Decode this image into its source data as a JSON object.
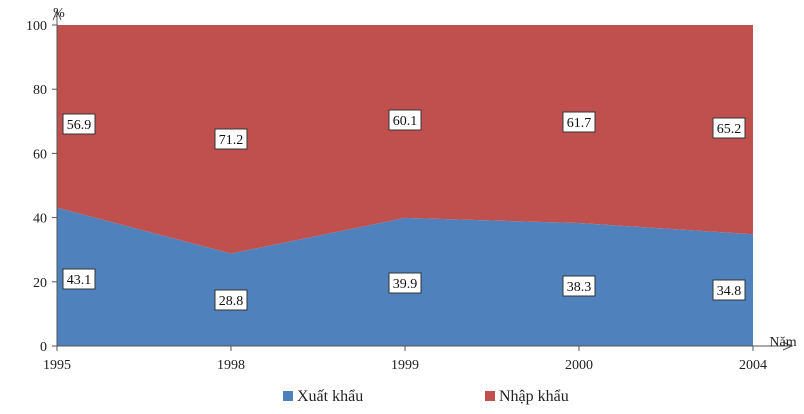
{
  "chart_data": {
    "type": "area",
    "stacked": true,
    "percent": true,
    "x": [
      "1995",
      "1998",
      "1999",
      "2000",
      "2004"
    ],
    "series": [
      {
        "name": "Xuất khẩu",
        "color": "#4f81bd",
        "values": [
          43.1,
          28.8,
          39.9,
          38.3,
          34.8
        ]
      },
      {
        "name": "Nhập khẩu",
        "color": "#c0504d",
        "values": [
          56.9,
          71.2,
          60.1,
          61.7,
          65.2
        ]
      }
    ],
    "title": "",
    "xlabel": "Năm",
    "ylabel": "%",
    "ylim": [
      0,
      100
    ],
    "yticks": [
      0,
      20,
      40,
      60,
      80,
      100
    ],
    "grid": false,
    "legend_position": "bottom"
  }
}
